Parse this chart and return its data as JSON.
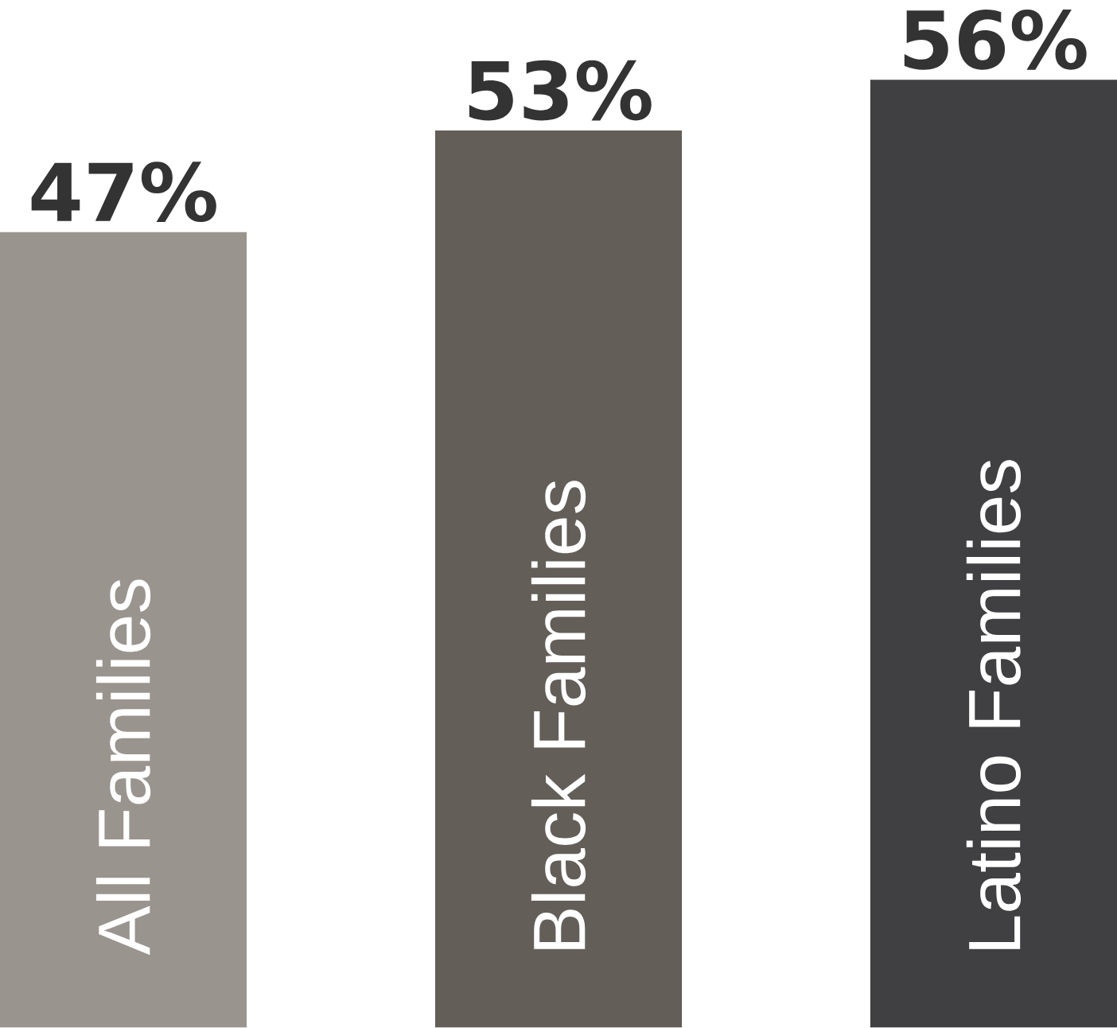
{
  "chart_data": {
    "type": "bar",
    "categories": [
      "All Families",
      "Black Families",
      "Latino Families"
    ],
    "values": [
      47,
      53,
      56
    ],
    "colors": [
      "#9a948e",
      "#635e58",
      "#404042"
    ],
    "value_labels": [
      "47%",
      "53%",
      "56%"
    ]
  }
}
